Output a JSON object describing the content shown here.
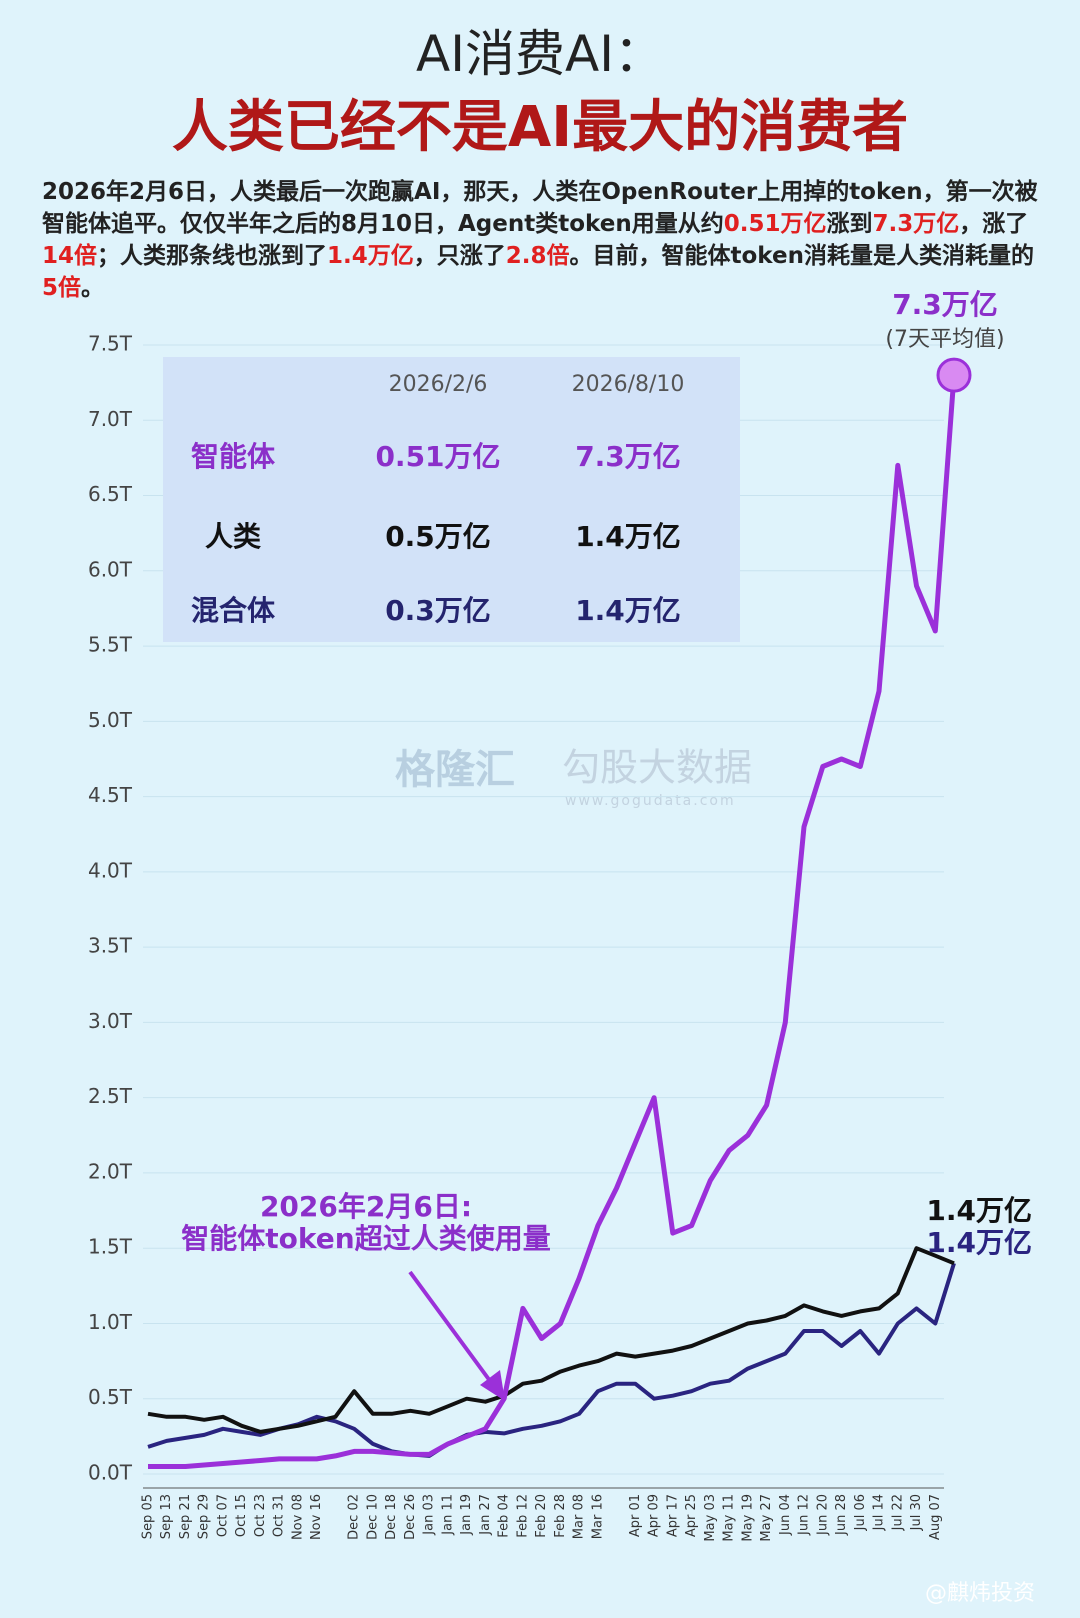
{
  "header": {
    "title": "AI消费AI：",
    "subtitle": "人类已经不是AI最大的消费者",
    "paragraph": [
      {
        "text": "2026年2月6日，人类最后一次跑赢AI，那天，人类在OpenRouter上用掉的token，第一次被智能体追平。仅仅半年之后的8月10日，Agent类token用量从约",
        "color": "#222222"
      },
      {
        "text": "0.51万亿",
        "color": "#e02020"
      },
      {
        "text": "涨到",
        "color": "#222222"
      },
      {
        "text": "7.3万亿",
        "color": "#e02020"
      },
      {
        "text": "，涨了",
        "color": "#222222"
      },
      {
        "text": "14倍",
        "color": "#e02020"
      },
      {
        "text": "；人类那条线也涨到了",
        "color": "#222222"
      },
      {
        "text": "1.4万亿",
        "color": "#e02020"
      },
      {
        "text": "，只涨了",
        "color": "#222222"
      },
      {
        "text": "2.8倍",
        "color": "#e02020"
      },
      {
        "text": "。目前，智能体token消耗量是人类消耗量的",
        "color": "#222222"
      },
      {
        "text": "5倍",
        "color": "#e02020"
      },
      {
        "text": "。",
        "color": "#222222"
      }
    ]
  },
  "table": {
    "columns": [
      "2026/2/6",
      "2026/8/10"
    ],
    "rows": [
      {
        "name": "智能体",
        "cells": [
          "0.51万亿",
          "7.3万亿"
        ],
        "color": "#8b2fc9"
      },
      {
        "name": "人类",
        "cells": [
          "0.5万亿",
          "1.4万亿"
        ],
        "color": "#111111"
      },
      {
        "name": "混合体",
        "cells": [
          "0.3万亿",
          "1.4万亿"
        ],
        "color": "#24246e"
      }
    ]
  },
  "watermark": {
    "brand": "格隆汇",
    "brand2": "勾股大数据",
    "url": "www.gogudata.com",
    "credit": "@麒炜投资"
  },
  "chart_data": {
    "type": "line",
    "grid": true,
    "ylim": [
      0,
      7.5
    ],
    "yticks": [
      {
        "value": 0,
        "label": "0.0T"
      },
      {
        "value": 0.5,
        "label": "0.5T"
      },
      {
        "value": 1,
        "label": "1.0T"
      },
      {
        "value": 1.5,
        "label": "1.5T"
      },
      {
        "value": 2,
        "label": "2.0T"
      },
      {
        "value": 2.5,
        "label": "2.5T"
      },
      {
        "value": 3,
        "label": "3.0T"
      },
      {
        "value": 3.5,
        "label": "3.5T"
      },
      {
        "value": 4,
        "label": "4.0T"
      },
      {
        "value": 4.5,
        "label": "4.5T"
      },
      {
        "value": 5,
        "label": "5.0T"
      },
      {
        "value": 5.5,
        "label": "5.5T"
      },
      {
        "value": 6,
        "label": "6.0T"
      },
      {
        "value": 6.5,
        "label": "6.5T"
      },
      {
        "value": 7,
        "label": "7.0T"
      },
      {
        "value": 7.5,
        "label": "7.5T"
      }
    ],
    "categories": [
      "Sep 05",
      "Sep 13",
      "Sep 21",
      "Sep 29",
      "Oct 07",
      "Oct 15",
      "Oct 23",
      "Oct 31",
      "Nov 08",
      "Nov 16",
      null,
      "Dec 02",
      "Dec 10",
      "Dec 18",
      "Dec 26",
      "Jan 03",
      "Jan 11",
      "Jan 19",
      "Jan 27",
      "Feb 04",
      "Feb 12",
      "Feb 20",
      "Feb 28",
      "Mar 08",
      "Mar 16",
      null,
      "Apr 01",
      "Apr 09",
      "Apr 17",
      "Apr 25",
      "May 03",
      "May 11",
      "May 19",
      "May 27",
      "Jun 04",
      "Jun 12",
      "Jun 20",
      "Jun 28",
      "Jul 06",
      "Jul 14",
      "Jul 22",
      "Jul 30",
      "Aug 07",
      null
    ],
    "series": [
      {
        "name": "智能体",
        "color": "#9b30d9",
        "values": [
          0.05,
          0.05,
          0.05,
          0.06,
          0.07,
          0.08,
          0.09,
          0.1,
          0.1,
          0.1,
          0.12,
          0.15,
          0.15,
          0.14,
          0.13,
          0.13,
          0.2,
          0.25,
          0.3,
          0.5,
          1.1,
          0.9,
          1.0,
          1.3,
          1.65,
          1.9,
          2.2,
          2.5,
          1.6,
          1.65,
          1.95,
          2.15,
          2.25,
          2.45,
          3.0,
          4.3,
          4.7,
          4.75,
          4.7,
          5.2,
          6.7,
          5.9,
          5.6,
          7.3
        ]
      },
      {
        "name": "人类",
        "color": "#111111",
        "values": [
          0.4,
          0.38,
          0.38,
          0.36,
          0.38,
          0.32,
          0.28,
          0.3,
          0.32,
          0.35,
          0.38,
          0.55,
          0.4,
          0.4,
          0.42,
          0.4,
          0.45,
          0.5,
          0.48,
          0.52,
          0.6,
          0.62,
          0.68,
          0.72,
          0.75,
          0.8,
          0.78,
          0.8,
          0.82,
          0.85,
          0.9,
          0.95,
          1.0,
          1.02,
          1.05,
          1.12,
          1.08,
          1.05,
          1.08,
          1.1,
          1.2,
          1.5,
          1.45,
          1.4
        ]
      },
      {
        "name": "混合体",
        "color": "#2a2480",
        "values": [
          0.18,
          0.22,
          0.24,
          0.26,
          0.3,
          0.28,
          0.26,
          0.3,
          0.33,
          0.38,
          0.35,
          0.3,
          0.2,
          0.15,
          0.13,
          0.12,
          0.2,
          0.26,
          0.28,
          0.27,
          0.3,
          0.32,
          0.35,
          0.4,
          0.55,
          0.6,
          0.6,
          0.5,
          0.52,
          0.55,
          0.6,
          0.62,
          0.7,
          0.75,
          0.8,
          0.95,
          0.95,
          0.85,
          0.95,
          0.8,
          1.0,
          1.1,
          1.0,
          1.4
        ]
      }
    ],
    "annotations": [
      {
        "text": "7.3万亿",
        "color": "#8b2fc9"
      },
      {
        "text": "(7天平均值)",
        "color": "#444444"
      },
      {
        "text": "1.4万亿",
        "color": "#111111"
      },
      {
        "text": "1.4万亿",
        "color": "#2a2480"
      },
      {
        "text": "2026年2月6日:",
        "color": "#8b2fc9"
      },
      {
        "text": "智能体token超过人类使用量",
        "color": "#8b2fc9"
      }
    ]
  }
}
